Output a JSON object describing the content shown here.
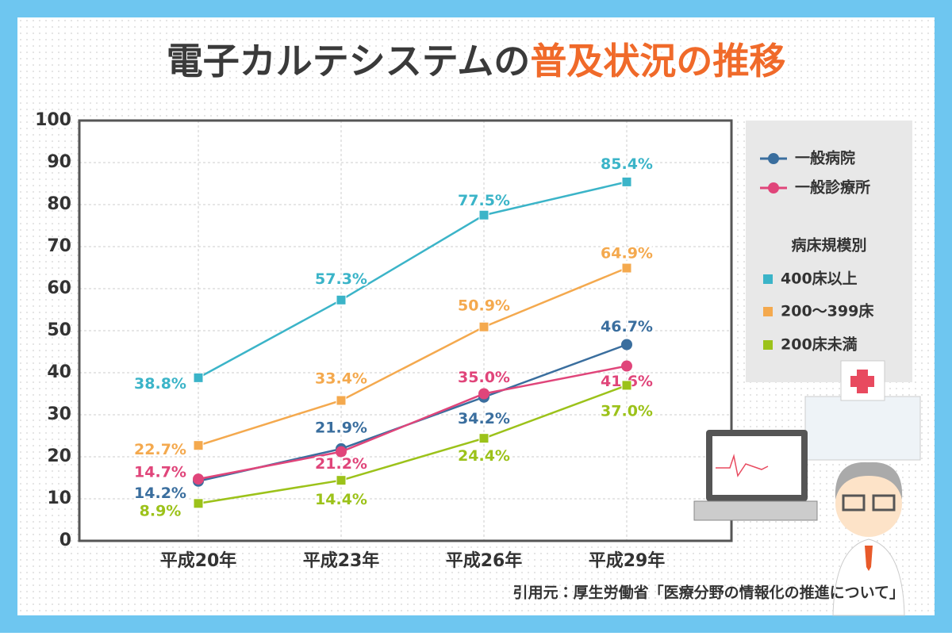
{
  "chart_data": {
    "type": "line",
    "title_parts": [
      "電子カルテシステムの",
      "普及状況の推移"
    ],
    "categories": [
      "平成20年",
      "平成23年",
      "平成26年",
      "平成29年"
    ],
    "series": [
      {
        "name": "一般病院",
        "color": "#3a6e9e",
        "marker": "circle",
        "values": [
          14.2,
          21.9,
          34.2,
          46.7
        ],
        "value_labels": [
          "14.2%",
          "21.9%",
          "34.2%",
          "46.7%"
        ]
      },
      {
        "name": "一般診療所",
        "color": "#e0457a",
        "marker": "circle",
        "values": [
          14.7,
          21.2,
          35.0,
          41.6
        ],
        "value_labels": [
          "14.7%",
          "21.2%",
          "35.0%",
          "41.6%"
        ]
      },
      {
        "name": "400床以上",
        "color": "#3bb4c8",
        "marker": "square",
        "values": [
          38.8,
          57.3,
          77.5,
          85.4
        ],
        "value_labels": [
          "38.8%",
          "57.3%",
          "77.5%",
          "85.4%"
        ]
      },
      {
        "name": "200～399床",
        "color": "#f4a94e",
        "marker": "square",
        "values": [
          22.7,
          33.4,
          50.9,
          64.9
        ],
        "value_labels": [
          "22.7%",
          "33.4%",
          "50.9%",
          "64.9%"
        ]
      },
      {
        "name": "200床未満",
        "color": "#9cc21a",
        "marker": "square",
        "values": [
          8.9,
          14.4,
          24.4,
          37.0
        ],
        "value_labels": [
          "8.9%",
          "14.4%",
          "24.4%",
          "37.0%"
        ]
      }
    ],
    "legend_group_title": "病床規模別",
    "ylim": [
      0,
      100
    ],
    "yticks": [
      0,
      10,
      20,
      30,
      40,
      50,
      60,
      70,
      80,
      90,
      100
    ],
    "grid": true,
    "source": "引用元：厚生労働省「医療分野の情報化の推進について」"
  }
}
